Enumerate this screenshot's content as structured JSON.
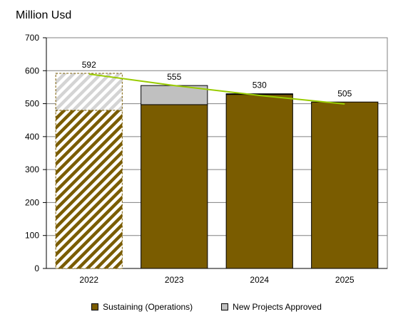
{
  "chart_data": {
    "type": "bar",
    "stacked": true,
    "unit_label": "Million Usd",
    "categories": [
      "2022",
      "2023",
      "2024",
      "2025"
    ],
    "series": [
      {
        "name": "Sustaining (Operations)",
        "values": [
          480,
          497,
          528,
          505
        ],
        "color": "#7a5c00"
      },
      {
        "name": "New Projects Approved",
        "values": [
          112,
          58,
          2,
          0
        ],
        "color": "#c0c0c0"
      }
    ],
    "totals": [
      592,
      555,
      530,
      505
    ],
    "trend_line": {
      "values": [
        590,
        555,
        525,
        499
      ],
      "color": "#99cc00"
    },
    "hatched_categories": [
      "2022"
    ],
    "ylim": [
      0,
      700
    ],
    "yticks": [
      0,
      100,
      200,
      300,
      400,
      500,
      600,
      700
    ],
    "grid": true,
    "legend_position": "bottom"
  }
}
